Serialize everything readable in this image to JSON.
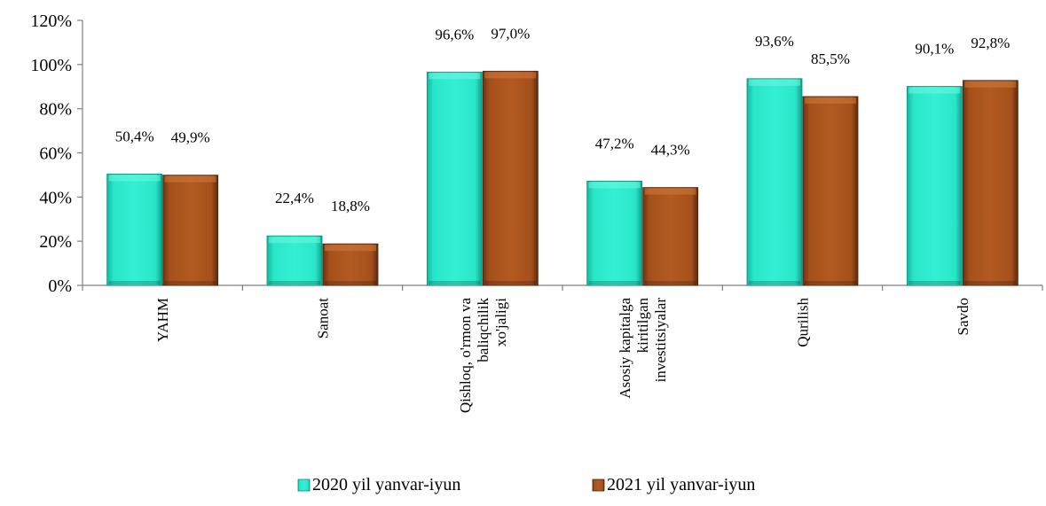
{
  "chart_data": {
    "type": "bar",
    "categories": [
      [
        "YAHM"
      ],
      [
        "Sanoat"
      ],
      [
        "Qishloq, o'rmon va",
        "baliqchilik",
        "xo'jaligi"
      ],
      [
        "Asosiy kapitalga",
        "kiritilgan",
        "investitsiyalar"
      ],
      [
        "Qurilish"
      ],
      [
        "Savdo"
      ]
    ],
    "series": [
      {
        "name": "2020 yil yanvar-iyun",
        "values": [
          50.4,
          22.4,
          96.6,
          47.2,
          93.6,
          90.1
        ],
        "labels": [
          "50,4%",
          "22,4%",
          "96,6%",
          "47,2%",
          "93,6%",
          "90,1%"
        ],
        "color": "#27e4c8"
      },
      {
        "name": "2021 yil yanvar-iyun",
        "values": [
          49.9,
          18.8,
          97.0,
          44.3,
          85.5,
          92.8
        ],
        "labels": [
          "49,9%",
          "18,8%",
          "97,0%",
          "44,3%",
          "85,5%",
          "92,8%"
        ],
        "color": "#a8521c"
      }
    ],
    "ylim": [
      0,
      120
    ],
    "yticks": [
      "0%",
      "20%",
      "40%",
      "60%",
      "80%",
      "100%",
      "120%"
    ],
    "ytick_values": [
      0,
      20,
      40,
      60,
      80,
      100,
      120
    ],
    "grid": false,
    "legend_position": "bottom"
  }
}
